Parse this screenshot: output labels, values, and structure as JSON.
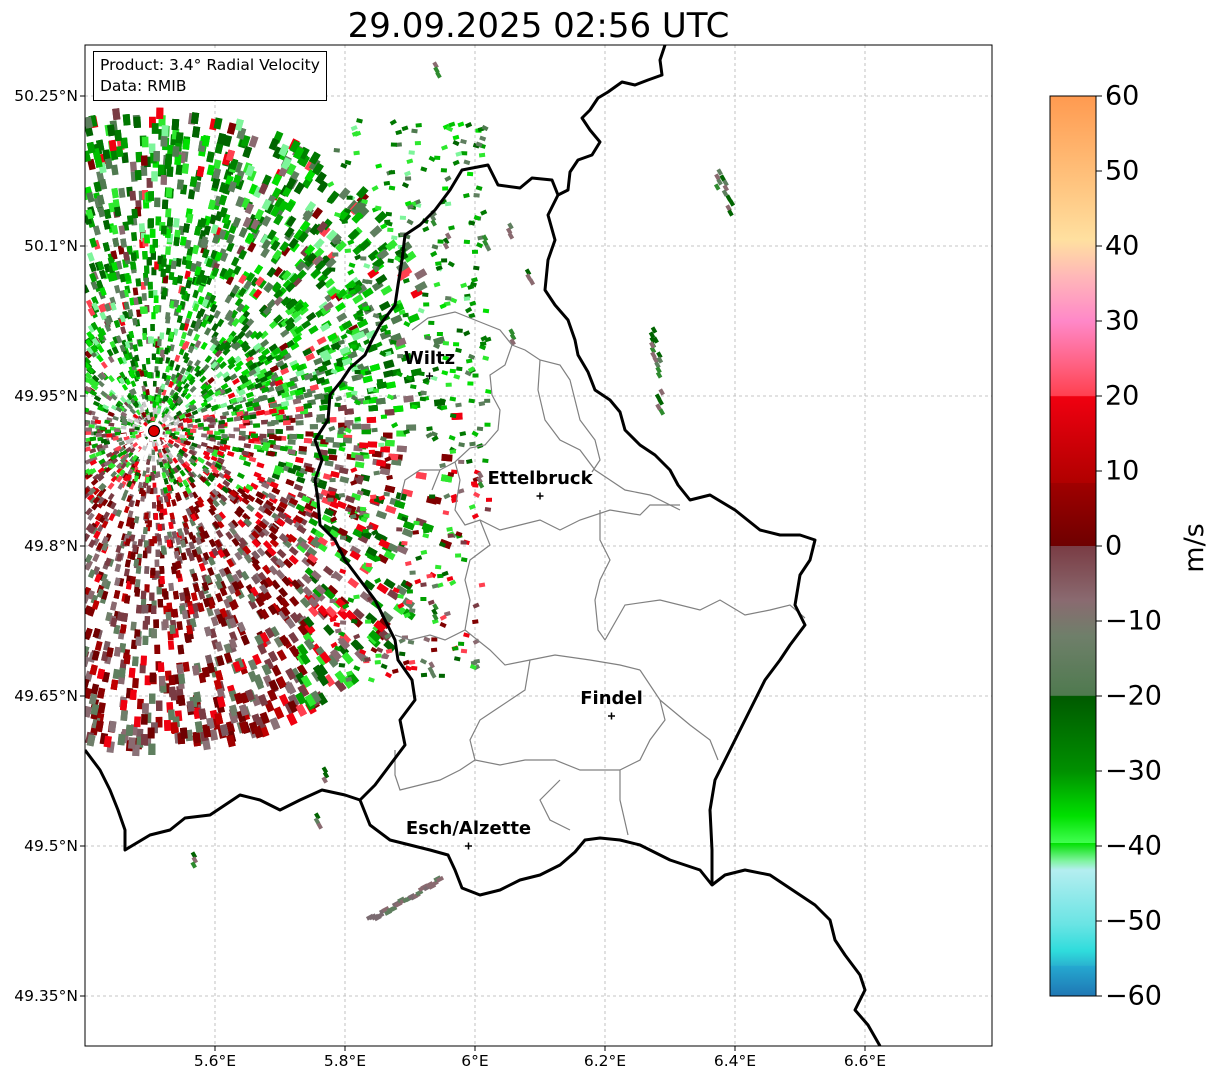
{
  "title": "29.09.2025 02:56 UTC",
  "info": {
    "product": "Product: 3.4° Radial Velocity",
    "data_source": "Data: RMIB"
  },
  "axes": {
    "latitude_labels": [
      "50.25°N",
      "50.1°N",
      "49.95°N",
      "49.8°N",
      "49.65°N",
      "49.5°N",
      "49.35°N"
    ],
    "longitude_labels": [
      "5.6°E",
      "5.8°E",
      "6°E",
      "6.2°E",
      "6.4°E",
      "6.6°E"
    ]
  },
  "cities": [
    {
      "name": "Wiltz",
      "lon": 5.93,
      "lat": 49.97
    },
    {
      "name": "Ettelbruck",
      "lon": 6.1,
      "lat": 49.85
    },
    {
      "name": "Findel",
      "lon": 6.21,
      "lat": 49.63
    },
    {
      "name": "Esch/Alzette",
      "lon": 5.99,
      "lat": 49.5
    }
  ],
  "radar_site": {
    "lon": 5.505,
    "lat": 49.915
  },
  "colorbar": {
    "unit": "m/s",
    "ticks": [
      "60",
      "50",
      "40",
      "30",
      "20",
      "10",
      "0",
      "−10",
      "−20",
      "−30",
      "−40",
      "−50",
      "−60"
    ],
    "min": -60,
    "max": 60,
    "colors": {
      "cyan_blue": "#1f77b4",
      "cyan": "#2fdcdc",
      "light_cyan": "#b4eef0",
      "light_green": "#7df59a",
      "green": "#00dd00",
      "dark_green": "#006400",
      "gray_green": "#5f7f5f",
      "gray_red": "#8a6a70",
      "dark_red": "#6e0000",
      "red": "#f00010",
      "pink": "#ff80c8",
      "peach": "#ffd2a0",
      "orange": "#ff9a50"
    }
  }
}
